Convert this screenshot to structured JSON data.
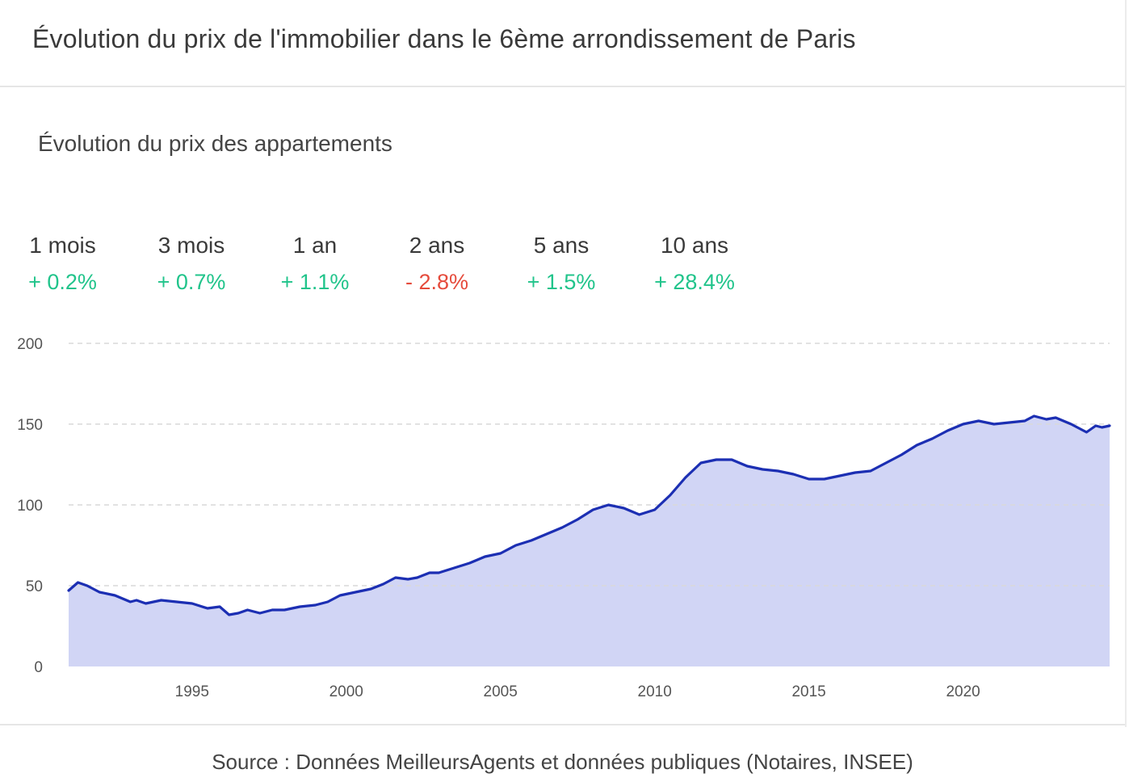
{
  "header": {
    "title": "Évolution du prix de l'immobilier dans le 6ème arrondissement de Paris"
  },
  "section": {
    "subtitle": "Évolution du prix des appartements"
  },
  "stats": [
    {
      "label": "1 mois",
      "value": "+ 0.2%",
      "trend": "up"
    },
    {
      "label": "3 mois",
      "value": "+ 0.7%",
      "trend": "up"
    },
    {
      "label": "1 an",
      "value": "+ 1.1%",
      "trend": "up"
    },
    {
      "label": "2 ans",
      "value": "- 2.8%",
      "trend": "down"
    },
    {
      "label": "5 ans",
      "value": "+ 1.5%",
      "trend": "up"
    },
    {
      "label": "10 ans",
      "value": "+ 28.4%",
      "trend": "up"
    }
  ],
  "colors": {
    "positive": "#21c48b",
    "negative": "#e54b3c",
    "line": "#1c2fb3",
    "area": "#d1d5f5",
    "grid": "#d9d9d9"
  },
  "chart_data": {
    "type": "area",
    "title": "Évolution du prix des appartements",
    "xlabel": "",
    "ylabel": "",
    "xlim": [
      1991,
      2024.75
    ],
    "ylim": [
      0,
      200
    ],
    "yticks": [
      0,
      50,
      100,
      150,
      200
    ],
    "xticks": [
      1995,
      2000,
      2005,
      2010,
      2015,
      2020
    ],
    "grid": true,
    "series": [
      {
        "name": "Prix des appartements",
        "x": [
          1991.0,
          1991.3,
          1991.6,
          1992.0,
          1992.5,
          1993.0,
          1993.2,
          1993.5,
          1994.0,
          1994.5,
          1995.0,
          1995.5,
          1995.9,
          1996.2,
          1996.5,
          1996.8,
          1997.2,
          1997.6,
          1998.0,
          1998.5,
          1999.0,
          1999.4,
          1999.8,
          2000.3,
          2000.8,
          2001.2,
          2001.6,
          2002.0,
          2002.3,
          2002.7,
          2003.0,
          2003.5,
          2004.0,
          2004.5,
          2005.0,
          2005.5,
          2006.0,
          2006.5,
          2007.0,
          2007.5,
          2008.0,
          2008.5,
          2009.0,
          2009.5,
          2010.0,
          2010.5,
          2011.0,
          2011.5,
          2012.0,
          2012.5,
          2013.0,
          2013.5,
          2014.0,
          2014.5,
          2015.0,
          2015.5,
          2016.0,
          2016.5,
          2017.0,
          2017.5,
          2018.0,
          2018.5,
          2019.0,
          2019.5,
          2020.0,
          2020.5,
          2021.0,
          2021.5,
          2022.0,
          2022.3,
          2022.7,
          2023.0,
          2023.5,
          2024.0,
          2024.3,
          2024.5,
          2024.75
        ],
        "values": [
          47,
          52,
          50,
          46,
          44,
          40,
          41,
          39,
          41,
          40,
          39,
          36,
          37,
          32,
          33,
          35,
          33,
          35,
          35,
          37,
          38,
          40,
          44,
          46,
          48,
          51,
          55,
          54,
          55,
          58,
          58,
          61,
          64,
          68,
          70,
          75,
          78,
          82,
          86,
          91,
          97,
          100,
          98,
          94,
          97,
          106,
          117,
          126,
          128,
          128,
          124,
          122,
          121,
          119,
          116,
          116,
          118,
          120,
          121,
          126,
          131,
          137,
          141,
          146,
          150,
          152,
          150,
          151,
          152,
          155,
          153,
          154,
          150,
          145,
          149,
          148,
          149
        ]
      }
    ]
  },
  "footer": {
    "source": "Source : Données MeilleursAgents et données publiques (Notaires, INSEE)"
  }
}
